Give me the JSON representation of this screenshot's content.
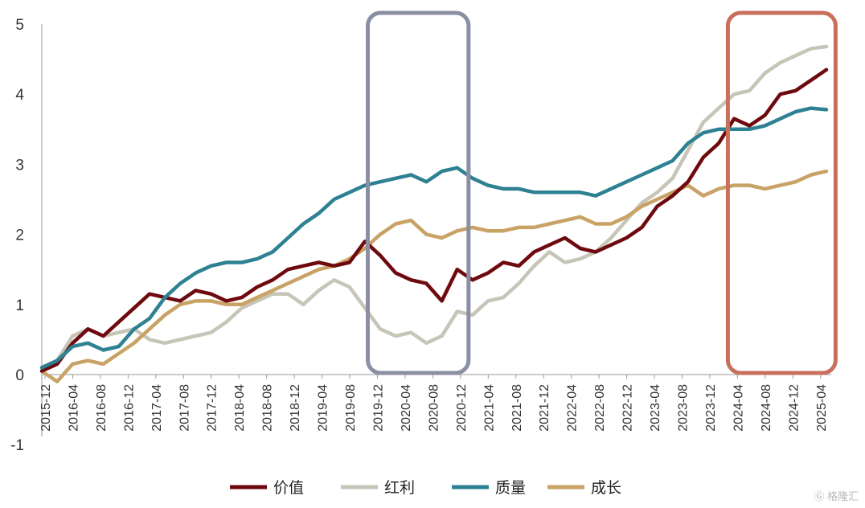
{
  "chart_data": {
    "type": "line",
    "title": "",
    "xlabel": "",
    "ylabel": "",
    "ylim": [
      -1,
      5
    ],
    "yticks": [
      -1,
      0,
      1,
      2,
      3,
      4,
      5
    ],
    "x_tick_labels": [
      "2015-12",
      "2016-04",
      "2016-08",
      "2016-12",
      "2017-04",
      "2017-08",
      "2017-12",
      "2018-04",
      "2018-08",
      "2018-12",
      "2019-04",
      "2019-08",
      "2019-12",
      "2020-04",
      "2020-08",
      "2020-12",
      "2021-04",
      "2021-08",
      "2021-12",
      "2022-04",
      "2022-08",
      "2022-12",
      "2023-04",
      "2023-08",
      "2023-12",
      "2024-04",
      "2024-08",
      "2024-12",
      "2025-04"
    ],
    "highlight_ranges": [
      {
        "name": "covid-period",
        "from": "2019-12",
        "to": "2020-12",
        "color": "#8a8fa3"
      },
      {
        "name": "recent-period",
        "from": "2024-04",
        "to": "2025-05",
        "color": "#c9705d"
      }
    ],
    "series": [
      {
        "name": "价值",
        "color": "#6e0a0f",
        "values": [
          0.05,
          0.15,
          0.45,
          0.65,
          0.55,
          0.75,
          0.95,
          1.15,
          1.1,
          1.05,
          1.2,
          1.15,
          1.05,
          1.1,
          1.25,
          1.35,
          1.5,
          1.55,
          1.6,
          1.55,
          1.6,
          1.9,
          1.7,
          1.45,
          1.35,
          1.3,
          1.05,
          1.5,
          1.35,
          1.45,
          1.6,
          1.55,
          1.75,
          1.85,
          1.95,
          1.8,
          1.75,
          1.85,
          1.95,
          2.1,
          2.4,
          2.55,
          2.75,
          3.1,
          3.3,
          3.65,
          3.55,
          3.7,
          4.0,
          4.05,
          4.2,
          4.35
        ]
      },
      {
        "name": "红利",
        "color": "#c6c5b8",
        "values": [
          0.1,
          0.2,
          0.55,
          0.65,
          0.55,
          0.6,
          0.65,
          0.5,
          0.45,
          0.5,
          0.55,
          0.6,
          0.75,
          0.95,
          1.05,
          1.15,
          1.15,
          1.0,
          1.2,
          1.35,
          1.25,
          0.95,
          0.65,
          0.55,
          0.6,
          0.45,
          0.55,
          0.9,
          0.85,
          1.05,
          1.1,
          1.3,
          1.55,
          1.75,
          1.6,
          1.65,
          1.75,
          1.95,
          2.2,
          2.45,
          2.6,
          2.8,
          3.2,
          3.6,
          3.8,
          4.0,
          4.05,
          4.3,
          4.45,
          4.55,
          4.65,
          4.68
        ]
      },
      {
        "name": "质量",
        "color": "#2e8192",
        "values": [
          0.1,
          0.2,
          0.4,
          0.45,
          0.35,
          0.4,
          0.65,
          0.8,
          1.1,
          1.3,
          1.45,
          1.55,
          1.6,
          1.6,
          1.65,
          1.75,
          1.95,
          2.15,
          2.3,
          2.5,
          2.6,
          2.7,
          2.75,
          2.8,
          2.85,
          2.75,
          2.9,
          2.95,
          2.8,
          2.7,
          2.65,
          2.65,
          2.6,
          2.6,
          2.6,
          2.6,
          2.55,
          2.65,
          2.75,
          2.85,
          2.95,
          3.05,
          3.3,
          3.45,
          3.5,
          3.5,
          3.5,
          3.55,
          3.65,
          3.75,
          3.8,
          3.78
        ]
      },
      {
        "name": "成长",
        "color": "#c9a265",
        "values": [
          0.05,
          -0.1,
          0.15,
          0.2,
          0.15,
          0.3,
          0.45,
          0.65,
          0.85,
          1.0,
          1.05,
          1.05,
          1.0,
          1.0,
          1.1,
          1.2,
          1.3,
          1.4,
          1.5,
          1.55,
          1.65,
          1.8,
          2.0,
          2.15,
          2.2,
          2.0,
          1.95,
          2.05,
          2.1,
          2.05,
          2.05,
          2.1,
          2.1,
          2.15,
          2.2,
          2.25,
          2.15,
          2.15,
          2.25,
          2.4,
          2.5,
          2.6,
          2.7,
          2.55,
          2.65,
          2.7,
          2.7,
          2.65,
          2.7,
          2.75,
          2.85,
          2.9
        ]
      }
    ]
  },
  "legend": [
    {
      "label": "价值",
      "color": "#6e0a0f"
    },
    {
      "label": "红利",
      "color": "#c6c5b8"
    },
    {
      "label": "质量",
      "color": "#2e8192"
    },
    {
      "label": "成长",
      "color": "#c9a265"
    }
  ],
  "watermark": "格隆汇"
}
